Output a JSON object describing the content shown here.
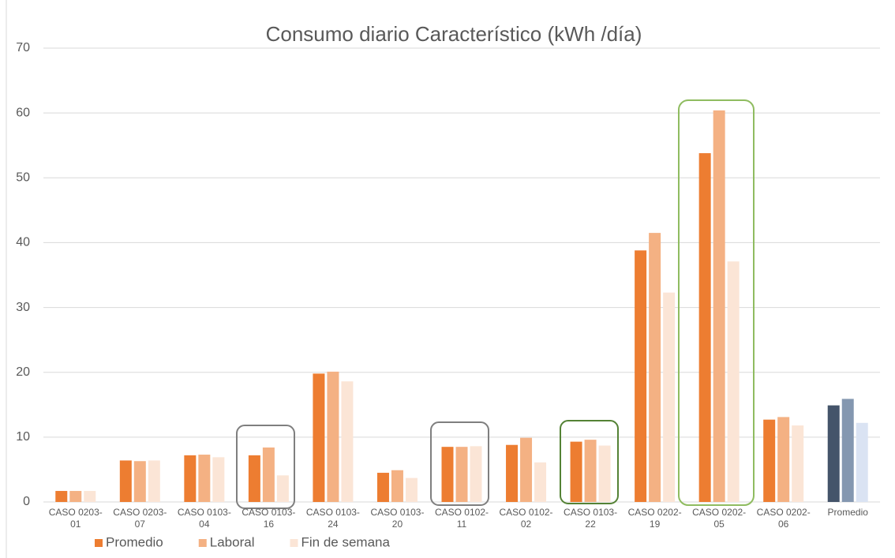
{
  "chart_data": {
    "type": "bar",
    "title": "Consumo diario Característico (kWh /día)",
    "categories": [
      "CASO 0203-01",
      "CASO 0203-07",
      "CASO 0103-04",
      "CASO 0103-16",
      "CASO 0103-24",
      "CASO 0103-20",
      "CASO 0102-11",
      "CASO 0102-02",
      "CASO 0103-22",
      "CASO 0202-19",
      "CASO 0202-05",
      "CASO 0202-06",
      "Promedio"
    ],
    "series": [
      {
        "name": "Promedio",
        "color": "#ed7d31",
        "colors": [
          "#ed7d31",
          "#ed7d31",
          "#ed7d31",
          "#ed7d31",
          "#ed7d31",
          "#ed7d31",
          "#ed7d31",
          "#ed7d31",
          "#ed7d31",
          "#ed7d31",
          "#ed7d31",
          "#ed7d31",
          "#44546a"
        ],
        "values": [
          1.7,
          6.4,
          7.2,
          7.2,
          19.8,
          4.5,
          8.5,
          8.8,
          9.3,
          38.8,
          53.8,
          12.7,
          14.9
        ]
      },
      {
        "name": "Laboral",
        "color": "#f4b183",
        "colors": [
          "#f4b183",
          "#f4b183",
          "#f4b183",
          "#f4b183",
          "#f4b183",
          "#f4b183",
          "#f4b183",
          "#f4b183",
          "#f4b183",
          "#f4b183",
          "#f4b183",
          "#f4b183",
          "#8497b0"
        ],
        "values": [
          1.7,
          6.3,
          7.3,
          8.4,
          20.1,
          4.9,
          8.5,
          9.9,
          9.6,
          41.5,
          60.4,
          13.1,
          15.9
        ]
      },
      {
        "name": "Fin de semana",
        "color": "#fbe5d6",
        "colors": [
          "#fbe5d6",
          "#fbe5d6",
          "#fbe5d6",
          "#fbe5d6",
          "#fbe5d6",
          "#fbe5d6",
          "#fbe5d6",
          "#fbe5d6",
          "#fbe5d6",
          "#fbe5d6",
          "#fbe5d6",
          "#fbe5d6",
          "#dae3f3"
        ],
        "values": [
          1.7,
          6.4,
          6.9,
          4.1,
          18.6,
          3.7,
          8.6,
          6.1,
          8.7,
          32.3,
          37.1,
          11.8,
          12.2
        ]
      }
    ],
    "ylim": [
      0,
      70
    ],
    "yticks": [
      0,
      10,
      20,
      30,
      40,
      50,
      60,
      70
    ],
    "grid": true,
    "legend": "bottom"
  }
}
